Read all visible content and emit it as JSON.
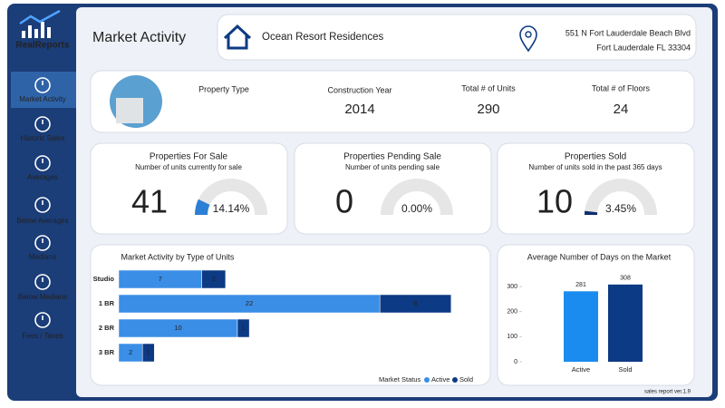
{
  "sidebar": {
    "logo": "RealReports",
    "items": [
      {
        "label": "Market Activity"
      },
      {
        "label": "Historic Sales"
      },
      {
        "label": "Averages"
      },
      {
        "label": "Below Averages"
      },
      {
        "label": "Medians"
      },
      {
        "label": "Below Medians"
      },
      {
        "label": "Fees / Taxes"
      }
    ]
  },
  "header": {
    "title": "Market Activity",
    "property_name": "Ocean Resort Residences",
    "address_line1": "551 N Fort Lauderdale Beach Blvd",
    "address_line2": "Fort Lauderdale FL 33304"
  },
  "property": {
    "fields": [
      {
        "label": "Property Type"
      },
      {
        "label": "Construction Year",
        "value": 2014
      },
      {
        "label": "Total # of Units",
        "value": 290
      },
      {
        "label": "Total # of Floors",
        "value": 24
      }
    ]
  },
  "kpis": [
    {
      "title": "Properties For Sale",
      "subtitle": "Number of units currently for sale",
      "value": 41,
      "color": "#2b7fd4",
      "gauge": {
        "value": 14.14,
        "label": "14.14%"
      }
    },
    {
      "title": "Properties Pending Sale",
      "subtitle": "Number of units pending sale",
      "value": 0,
      "color": "#f0a030",
      "gauge": {
        "value": 0,
        "label": "0.00%"
      }
    },
    {
      "title": "Properties Sold",
      "subtitle": "Number of units sold in the past 365 days",
      "value": 10,
      "color": "#0d2f6e",
      "gauge": {
        "value": 3.45,
        "label": "3.45%"
      }
    }
  ],
  "units_chart": {
    "type": "bar",
    "title": "Market Activity by Type of Units",
    "categories": [
      "Studio",
      "1 BR",
      "2 BR",
      "3 BR"
    ],
    "legend_title": "Market Status",
    "series": [
      {
        "name": "Active",
        "color": "#3a8ee6",
        "values": [
          7,
          22,
          10,
          2
        ]
      },
      {
        "name": "Sold",
        "color": "#0d3a84",
        "values": [
          2,
          6,
          1,
          1
        ]
      }
    ]
  },
  "days_chart": {
    "type": "bar",
    "title": "Average Number of Days on the Market",
    "categories": [
      "Active",
      "Sold"
    ],
    "values": [
      281,
      308
    ],
    "colors": [
      "#1a8cf0",
      "#0d3a84"
    ],
    "ylim": [
      0,
      320
    ],
    "yticks": [
      0,
      100,
      200,
      300
    ]
  },
  "footer": "sales report ver.1.9"
}
